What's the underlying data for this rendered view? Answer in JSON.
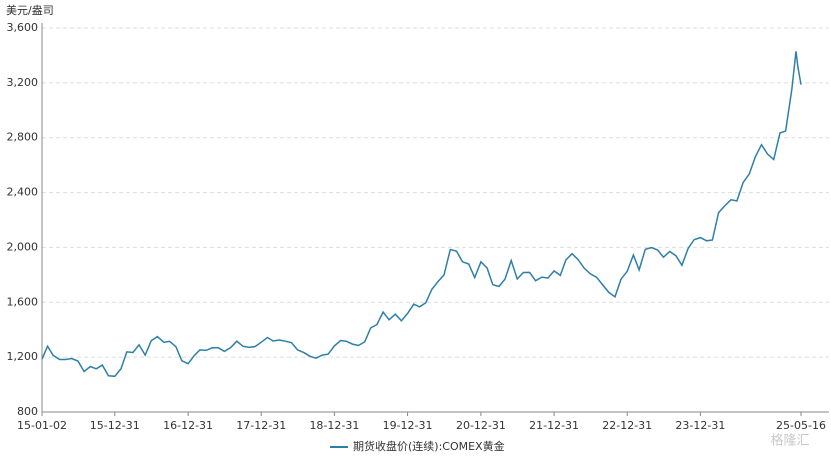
{
  "chart_data": {
    "type": "line",
    "y_axis_label": "美元/盎司",
    "watermark": "格隆汇",
    "x": [
      "15-01-02",
      "15-01-30",
      "15-02-27",
      "15-03-31",
      "15-04-30",
      "15-05-29",
      "15-06-30",
      "15-07-31",
      "15-08-31",
      "15-09-30",
      "15-10-30",
      "15-11-30",
      "15-12-31",
      "16-01-31",
      "16-02-29",
      "16-03-31",
      "16-04-30",
      "16-05-31",
      "16-06-30",
      "16-07-31",
      "16-08-31",
      "16-09-30",
      "16-10-31",
      "16-11-30",
      "16-12-31",
      "17-01-31",
      "17-02-28",
      "17-03-31",
      "17-04-30",
      "17-05-31",
      "17-06-30",
      "17-07-31",
      "17-08-31",
      "17-09-30",
      "17-10-31",
      "17-11-30",
      "17-12-31",
      "18-01-31",
      "18-02-28",
      "18-03-31",
      "18-04-30",
      "18-05-31",
      "18-06-30",
      "18-07-31",
      "18-08-31",
      "18-09-30",
      "18-10-31",
      "18-11-30",
      "18-12-31",
      "19-01-31",
      "19-02-28",
      "19-03-31",
      "19-04-30",
      "19-05-31",
      "19-06-30",
      "19-07-31",
      "19-08-31",
      "19-09-30",
      "19-10-31",
      "19-11-30",
      "19-12-31",
      "20-01-31",
      "20-02-29",
      "20-03-31",
      "20-04-30",
      "20-05-31",
      "20-06-30",
      "20-07-31",
      "20-08-31",
      "20-09-30",
      "20-10-31",
      "20-11-30",
      "20-12-31",
      "21-01-31",
      "21-02-28",
      "21-03-31",
      "21-04-30",
      "21-05-31",
      "21-06-30",
      "21-07-31",
      "21-08-31",
      "21-09-30",
      "21-10-31",
      "21-11-30",
      "21-12-31",
      "22-01-31",
      "22-02-28",
      "22-03-31",
      "22-04-30",
      "22-05-31",
      "22-06-30",
      "22-07-31",
      "22-08-31",
      "22-09-30",
      "22-10-31",
      "22-11-30",
      "22-12-31",
      "23-01-31",
      "23-02-28",
      "23-03-31",
      "23-04-30",
      "23-05-31",
      "23-06-30",
      "23-07-31",
      "23-08-31",
      "23-09-30",
      "23-10-31",
      "23-11-30",
      "23-12-31",
      "24-01-31",
      "24-02-29",
      "24-03-31",
      "24-04-30",
      "24-05-31",
      "24-06-30",
      "24-07-31",
      "24-08-31",
      "24-09-30",
      "24-10-31",
      "24-11-30",
      "24-12-31",
      "25-01-31",
      "25-02-28",
      "25-03-31",
      "25-04-21",
      "25-04-30",
      "25-05-16"
    ],
    "series": [
      {
        "name": "期货收盘价(连续):COMEX黄金",
        "color": "#2e7fa8",
        "values": [
          1186,
          1280,
          1213,
          1183,
          1183,
          1190,
          1172,
          1095,
          1132,
          1115,
          1142,
          1064,
          1060,
          1116,
          1238,
          1234,
          1290,
          1215,
          1320,
          1350,
          1309,
          1315,
          1276,
          1173,
          1152,
          1211,
          1253,
          1249,
          1268,
          1268,
          1242,
          1269,
          1316,
          1280,
          1271,
          1277,
          1309,
          1343,
          1318,
          1325,
          1316,
          1305,
          1253,
          1233,
          1206,
          1192,
          1215,
          1222,
          1282,
          1321,
          1316,
          1295,
          1285,
          1311,
          1413,
          1437,
          1529,
          1472,
          1513,
          1465,
          1519,
          1587,
          1566,
          1596,
          1694,
          1751,
          1800,
          1985,
          1973,
          1895,
          1879,
          1780,
          1895,
          1850,
          1728,
          1715,
          1769,
          1905,
          1770,
          1817,
          1818,
          1757,
          1784,
          1776,
          1829,
          1796,
          1909,
          1954,
          1911,
          1848,
          1807,
          1782,
          1726,
          1672,
          1640,
          1768,
          1826,
          1945,
          1836,
          1986,
          1999,
          1982,
          1929,
          1970,
          1940,
          1870,
          1994,
          2057,
          2072,
          2048,
          2054,
          2254,
          2302,
          2347,
          2339,
          2473,
          2536,
          2660,
          2749,
          2681,
          2641,
          2835,
          2848,
          3150,
          3430,
          3320,
          3187
        ]
      }
    ],
    "xlim": [
      "15-01-02",
      "25-05-16"
    ],
    "xticks": [
      "15-01-02",
      "15-12-31",
      "16-12-31",
      "17-12-31",
      "18-12-31",
      "19-12-31",
      "20-12-31",
      "21-12-31",
      "22-12-31",
      "23-12-31",
      "25-05-16"
    ],
    "ylim": [
      800,
      3600
    ],
    "yticks": [
      800,
      {
        "value": 1200,
        "label": "1,200"
      },
      {
        "value": 1600,
        "label": "1,600"
      },
      {
        "value": 2000,
        "label": "2,000"
      },
      {
        "value": 2400,
        "label": "2,400"
      },
      {
        "value": 2800,
        "label": "2,800"
      },
      {
        "value": 3200,
        "label": "3,200"
      },
      {
        "value": 3600,
        "label": "3,600"
      }
    ],
    "grid": true
  }
}
